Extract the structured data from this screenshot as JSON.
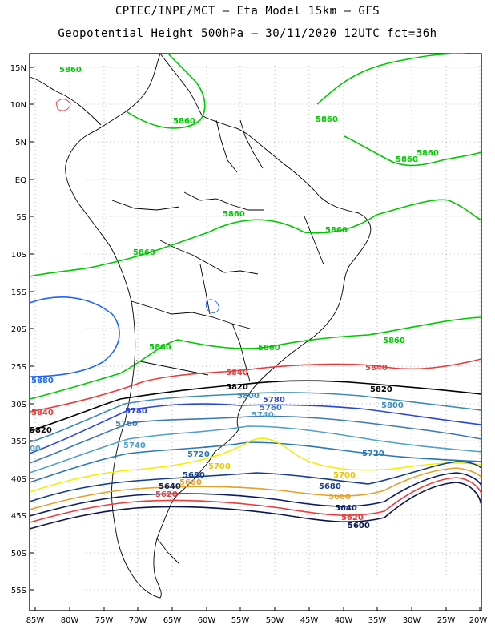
{
  "header": {
    "title_line1": "CPTEC/INPE/MCT –  Eta Model 15km – GFS",
    "title_line2": "Geopotential Height 500hPa – 30/11/2020 12UTC fct=36h"
  },
  "axes": {
    "lat_labels": [
      "15N",
      "10N",
      "5N",
      "EQ",
      "5S",
      "10S",
      "15S",
      "20S",
      "25S",
      "30S",
      "35S",
      "40S",
      "45S",
      "50S",
      "55S"
    ],
    "lon_labels": [
      "85W",
      "80W",
      "75W",
      "70W",
      "65W",
      "60W",
      "55W",
      "50W",
      "45W",
      "40W",
      "35W",
      "30W",
      "25W",
      "20W"
    ]
  },
  "colors": {
    "c5880": "#1e64ff",
    "c5860": "#00c800",
    "c5840": "#e63c3c",
    "c5820": "#000000",
    "c5800": "#3c8cb4",
    "c5780": "#2846dc",
    "c5760": "#3c78b4",
    "c5740": "#50a0c8",
    "c5720": "#2878b4",
    "c5700": "#f0f000",
    "c5680": "#143c8c",
    "c5660": "#e6a028",
    "c5640": "#0a1e64",
    "c5620": "#e63c3c",
    "c5600": "#0a1450"
  },
  "contour_labels": [
    {
      "text": "5860",
      "color": "#00c800"
    },
    {
      "text": "5860",
      "color": "#00c800"
    },
    {
      "text": "5860",
      "color": "#00c800"
    },
    {
      "text": "5860",
      "color": "#00c800"
    },
    {
      "text": "5860",
      "color": "#00c800"
    },
    {
      "text": "5860",
      "color": "#00c800"
    },
    {
      "text": "5860",
      "color": "#00c800"
    },
    {
      "text": "5860",
      "color": "#00c800"
    },
    {
      "text": "5860",
      "color": "#00c800"
    },
    {
      "text": "5860",
      "color": "#00c800"
    },
    {
      "text": "5860",
      "color": "#00c800"
    },
    {
      "text": "5880",
      "color": "#1e64ff"
    },
    {
      "text": "5840",
      "color": "#e63c3c"
    },
    {
      "text": "5840",
      "color": "#e63c3c"
    },
    {
      "text": "5840",
      "color": "#e63c3c"
    },
    {
      "text": "5820",
      "color": "#000000"
    },
    {
      "text": "5820",
      "color": "#000000"
    },
    {
      "text": "5820",
      "color": "#000000"
    },
    {
      "text": "5800",
      "color": "#3c8cb4"
    },
    {
      "text": "5800",
      "color": "#3c8cb4"
    },
    {
      "text": "5780",
      "color": "#2846dc"
    },
    {
      "text": "5780",
      "color": "#2846dc"
    },
    {
      "text": "5760",
      "color": "#3c78b4"
    },
    {
      "text": "5760",
      "color": "#3c78b4"
    },
    {
      "text": "5740",
      "color": "#50a0c8"
    },
    {
      "text": "5740",
      "color": "#50a0c8"
    },
    {
      "text": "5720",
      "color": "#2878b4"
    },
    {
      "text": "5720",
      "color": "#2878b4"
    },
    {
      "text": "5700",
      "color": "#e6c800"
    },
    {
      "text": "5700",
      "color": "#e6c800"
    },
    {
      "text": "5680",
      "color": "#143c8c"
    },
    {
      "text": "5680",
      "color": "#143c8c"
    },
    {
      "text": "5660",
      "color": "#e6a028"
    },
    {
      "text": "5660",
      "color": "#e6a028"
    },
    {
      "text": "5640",
      "color": "#0a1e64"
    },
    {
      "text": "5640",
      "color": "#0a1e64"
    },
    {
      "text": "5620",
      "color": "#e63c3c"
    },
    {
      "text": "5620",
      "color": "#e63c3c"
    },
    {
      "text": "5600",
      "color": "#0a1450"
    },
    {
      "text": "00",
      "color": "#50a0c8"
    }
  ]
}
